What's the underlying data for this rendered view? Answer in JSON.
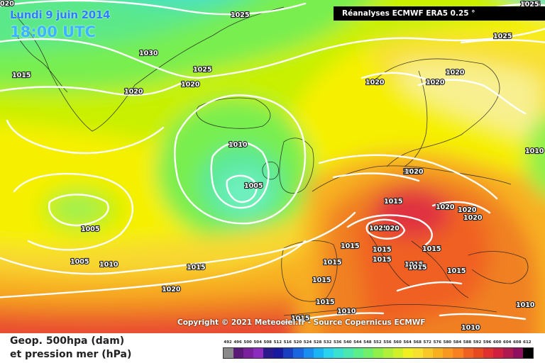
{
  "title": {
    "date": "Lundi 9 juin 2014",
    "time": "18:00 UTC"
  },
  "source_label": "Réanalyses ECMWF ERA5 0.25 °",
  "copyright": "Copyright © 2021 Meteociel.fr - Source Copernicus ECMWF",
  "legend": {
    "line1": "Geop. 500hpa (dam)",
    "line2": "et pression mer (hPa)",
    "scale_values": [
      "492",
      "496",
      "500",
      "504",
      "508",
      "512",
      "516",
      "520",
      "524",
      "528",
      "532",
      "536",
      "540",
      "544",
      "548",
      "552",
      "556",
      "560",
      "564",
      "568",
      "572",
      "576",
      "580",
      "584",
      "588",
      "592",
      "596",
      "600",
      "604",
      "608",
      "612"
    ],
    "scale_colors": [
      "#8a8a8a",
      "#5c1a78",
      "#7a1f9e",
      "#8e2bbf",
      "#2a1a8e",
      "#1a1aa0",
      "#1a3ec0",
      "#1a66e0",
      "#1a8ef0",
      "#1ab4f5",
      "#2ad2f0",
      "#3ae0d0",
      "#4ae8b0",
      "#5aee8a",
      "#70f06a",
      "#90f04a",
      "#b0f03a",
      "#d0f02a",
      "#f0f020",
      "#f8e030",
      "#f8c828",
      "#f8b020",
      "#f89820",
      "#f88020",
      "#f06020",
      "#e84a20",
      "#e03030",
      "#d02040",
      "#b01850",
      "#901060",
      "#000000"
    ]
  },
  "isobars": [
    {
      "value": "1025",
      "label": "1025"
    },
    {
      "value": "1025",
      "label": "1025"
    },
    {
      "value": "1025",
      "label": "1025"
    },
    {
      "value": "1030",
      "label": "1030"
    },
    {
      "value": "1025",
      "label": "1025"
    },
    {
      "value": "1020",
      "label": "1020"
    },
    {
      "value": "1020",
      "label": "1020"
    },
    {
      "value": "1020",
      "label": "1020"
    },
    {
      "value": "1020",
      "label": "1020"
    },
    {
      "value": "1020",
      "label": "1020"
    },
    {
      "value": "1015",
      "label": "1015"
    },
    {
      "value": "1010",
      "label": "1010"
    },
    {
      "value": "1005",
      "label": "1005"
    },
    {
      "value": "1005",
      "label": "1005"
    },
    {
      "value": "1005",
      "label": "1005"
    },
    {
      "value": "1010",
      "label": "1010"
    },
    {
      "value": "1015",
      "label": "1015"
    },
    {
      "value": "1020",
      "label": "1020"
    },
    {
      "value": "1020",
      "label": "1020"
    },
    {
      "value": "1015",
      "label": "1015"
    },
    {
      "value": "1020",
      "label": "1020"
    },
    {
      "value": "1020",
      "label": "1020"
    },
    {
      "value": "1020",
      "label": "1020"
    },
    {
      "value": "1025",
      "label": "1025"
    },
    {
      "value": "020",
      "label": "020"
    },
    {
      "value": "1015",
      "label": "1015"
    },
    {
      "value": "1015",
      "label": "1015"
    },
    {
      "value": "1015",
      "label": "1015"
    },
    {
      "value": "1015",
      "label": "1015"
    },
    {
      "value": "1015",
      "label": "1015"
    },
    {
      "value": "1015",
      "label": "1015"
    },
    {
      "value": "1015",
      "label": "1015"
    },
    {
      "value": "1015",
      "label": "1015"
    },
    {
      "value": "1015",
      "label": "1015"
    },
    {
      "value": "1015",
      "label": "1015"
    },
    {
      "value": "1010",
      "label": "1010"
    },
    {
      "value": "1010",
      "label": "1010"
    },
    {
      "value": "1010",
      "label": "1010"
    },
    {
      "value": "1010",
      "label": "1010"
    },
    {
      "value": "1015",
      "label": "1015"
    },
    {
      "value": "1025",
      "label": "1025"
    },
    {
      "value": "1020",
      "label": "1020"
    },
    {
      "value": "020",
      "label": "020"
    }
  ]
}
